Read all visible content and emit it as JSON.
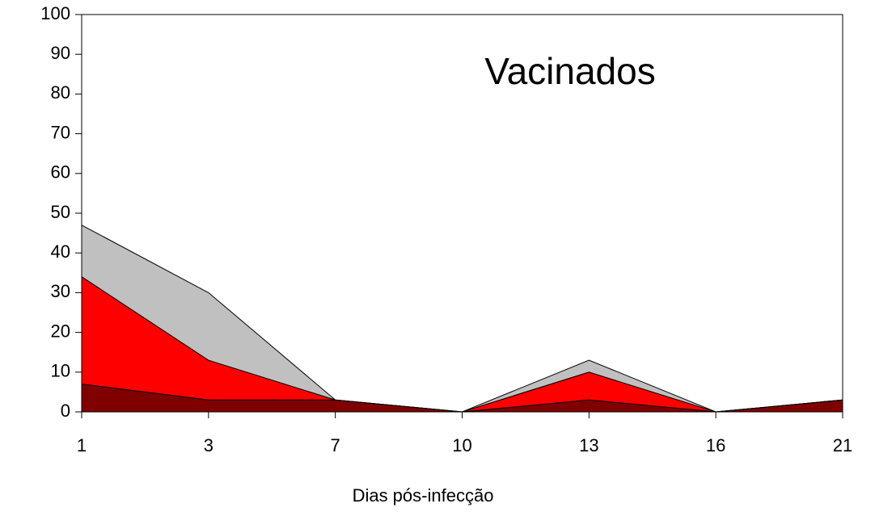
{
  "chart_data": {
    "type": "stacked_area",
    "title": "Vacinados",
    "x_label": "Dias pós-infecção",
    "categories": [
      "1",
      "3",
      "7",
      "10",
      "13",
      "16",
      "21"
    ],
    "series": [
      {
        "color": "#800000",
        "values": [
          7,
          3,
          3,
          0,
          3,
          0,
          3
        ]
      },
      {
        "color": "#ff0000",
        "values": [
          27,
          10,
          0,
          0,
          7,
          0,
          0
        ]
      },
      {
        "color": "#c0c0c0",
        "values": [
          13,
          17,
          0,
          0,
          3,
          0,
          0
        ]
      }
    ],
    "ylim": [
      0,
      100
    ],
    "yticks": [
      0,
      10,
      20,
      30,
      40,
      50,
      60,
      70,
      80,
      90,
      100
    ]
  }
}
